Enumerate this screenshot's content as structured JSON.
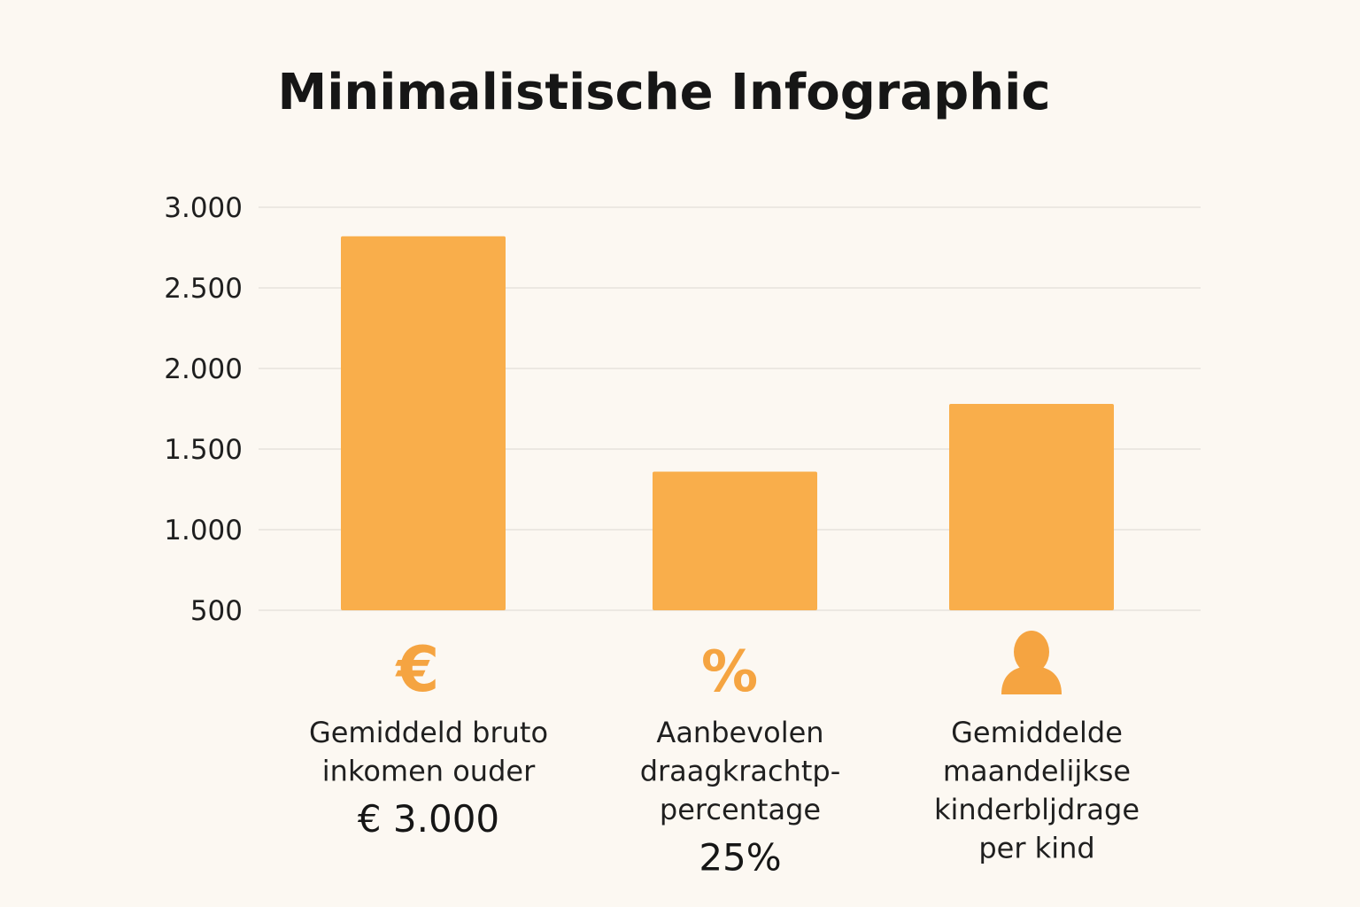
{
  "chart_data": {
    "type": "bar",
    "title": "Minimalistische Infographic",
    "xlabel": "",
    "ylabel": "",
    "ylim": [
      500,
      3000
    ],
    "yticks": [
      500,
      1000,
      1500,
      2000,
      2500,
      3000
    ],
    "ytick_labels": [
      "500",
      "1.000",
      "1.500",
      "2.000",
      "2.500",
      "3.000"
    ],
    "grid": true,
    "bar_color": "#f9ae4b",
    "grid_color": "#e6e2dc",
    "categories": [
      {
        "label_lines": [
          "Gemiddeld bruto",
          "inkomen ouder"
        ],
        "value_label": "€ 3.000",
        "icon": "euro-icon",
        "icon_glyph": "€"
      },
      {
        "label_lines": [
          "Aanbevolen",
          "draagkrachtp-",
          "percentage"
        ],
        "value_label": "25%",
        "icon": "percent-icon",
        "icon_glyph": "%"
      },
      {
        "label_lines": [
          "Gemiddelde",
          "maandelijkse",
          "kinderbljdrage",
          "per kind"
        ],
        "value_label": "",
        "icon": "person-icon",
        "icon_glyph": ""
      }
    ],
    "values": [
      2820,
      1360,
      1780
    ]
  }
}
